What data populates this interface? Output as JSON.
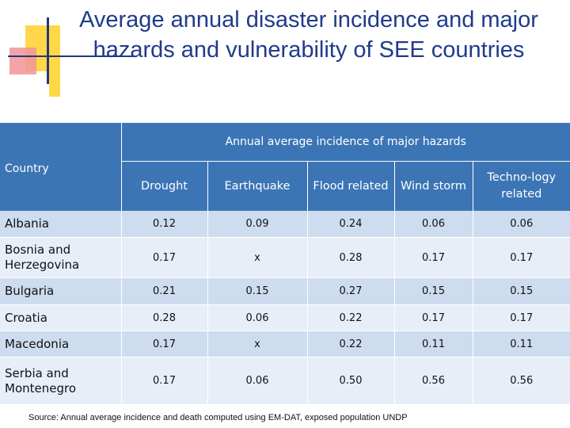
{
  "title": "Average annual disaster incidence and major hazards and vulnerability of SEE countries",
  "table": {
    "country_header": "Country",
    "group_header": "Annual average incidence of major hazards",
    "columns": [
      "Drought",
      "Earthquake",
      "Flood related",
      "Wind storm",
      "Techno-logy related"
    ],
    "rows": [
      {
        "country": "Albania",
        "values": [
          "0.12",
          "0.09",
          "0.24",
          "0.06",
          "0.06"
        ]
      },
      {
        "country": "Bosnia and Herzegovina",
        "values": [
          "0.17",
          "x",
          "0.28",
          "0.17",
          "0.17"
        ]
      },
      {
        "country": "Bulgaria",
        "values": [
          "0.21",
          "0.15",
          "0.27",
          "0.15",
          "0.15"
        ]
      },
      {
        "country": "Croatia",
        "values": [
          "0.28",
          "0.06",
          "0.22",
          "0.17",
          "0.17"
        ]
      },
      {
        "country": "Macedonia",
        "values": [
          "0.17",
          "x",
          "0.22",
          "0.11",
          "0.11"
        ]
      },
      {
        "country": "Serbia and Montenegro",
        "values": [
          "0.17",
          "0.06",
          "0.50",
          "0.56",
          "0.56"
        ]
      }
    ]
  },
  "source": "Source: Annual average  incidence and death computed using EM-DAT, exposed population UNDP",
  "colors": {
    "header": "#3c75b5",
    "row_odd": "#cddcee",
    "row_even": "#e7eef7",
    "title": "#1f3b8c"
  }
}
